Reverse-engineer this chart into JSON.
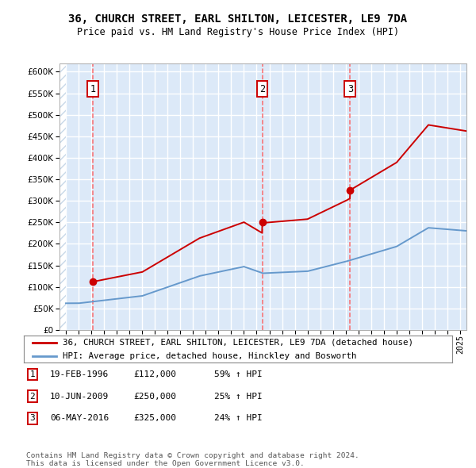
{
  "title1": "36, CHURCH STREET, EARL SHILTON, LEICESTER, LE9 7DA",
  "title2": "Price paid vs. HM Land Registry's House Price Index (HPI)",
  "legend_line1": "36, CHURCH STREET, EARL SHILTON, LEICESTER, LE9 7DA (detached house)",
  "legend_line2": "HPI: Average price, detached house, Hinckley and Bosworth",
  "transactions": [
    {
      "num": 1,
      "date": "19-FEB-1996",
      "price": 112000,
      "pct": "59%",
      "year": 1996.12
    },
    {
      "num": 2,
      "date": "10-JUN-2009",
      "price": 250000,
      "pct": "25%",
      "year": 2009.44
    },
    {
      "num": 3,
      "date": "06-MAY-2016",
      "price": 325000,
      "pct": "24%",
      "year": 2016.35
    }
  ],
  "footer1": "Contains HM Land Registry data © Crown copyright and database right 2024.",
  "footer2": "This data is licensed under the Open Government Licence v3.0.",
  "xlim": [
    1993.5,
    2025.5
  ],
  "ylim": [
    0,
    620000
  ],
  "bg_color": "#dce9f8",
  "red_line_color": "#cc0000",
  "blue_line_color": "#6699cc",
  "marker_color": "#cc0000",
  "grid_color": "#ffffff",
  "vline_color": "#ff5555",
  "hatch_color": "#c8d8e8"
}
